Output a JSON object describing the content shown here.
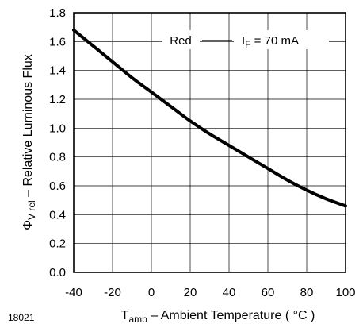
{
  "chart_data": {
    "type": "line",
    "xlabel": {
      "symbol": "T",
      "subscript": "amb",
      "text": " – Ambient Temperature  ( °C )"
    },
    "ylabel": {
      "symbol": "Φ",
      "subscript": "V rel",
      "text": " – Relative Luminous Flux"
    },
    "xlim": [
      -40,
      100
    ],
    "ylim": [
      0.0,
      1.8
    ],
    "xticks": [
      "-40",
      "-20",
      "0",
      "20",
      "40",
      "60",
      "80",
      "100"
    ],
    "yticks": [
      "0.0",
      "0.2",
      "0.4",
      "0.6",
      "0.8",
      "1.0",
      "1.2",
      "1.4",
      "1.6",
      "1.8"
    ],
    "grid": true,
    "series": [
      {
        "name": "Red",
        "x": [
          -40,
          -30,
          -20,
          -10,
          0,
          10,
          20,
          30,
          40,
          50,
          60,
          70,
          80,
          90,
          100
        ],
        "y": [
          1.68,
          1.57,
          1.46,
          1.35,
          1.25,
          1.15,
          1.05,
          0.96,
          0.88,
          0.8,
          0.72,
          0.64,
          0.57,
          0.51,
          0.46
        ]
      }
    ],
    "annotations": {
      "series_label": "Red",
      "condition": {
        "symbol": "I",
        "subscript": "F",
        "text": " = 70 mA"
      }
    },
    "figure_id": "18021"
  }
}
